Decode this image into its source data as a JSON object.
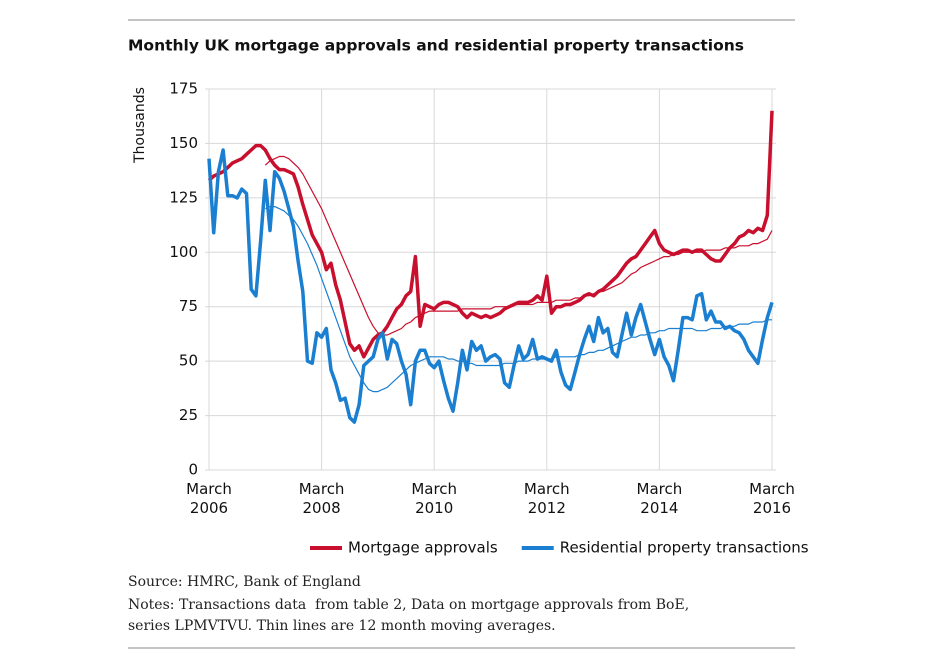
{
  "chart_data": {
    "type": "line",
    "title": "Monthly UK mortgage approvals and residential property transactions",
    "y_label": "Thousands",
    "source": "Source: HMRC, Bank of England",
    "notes": [
      "Notes: Transactions data  from table 2, Data on mortgage approvals from BoE,",
      "series LPMVTVU. Thin lines are 12 month moving averages."
    ],
    "x": [
      "2006-03",
      "2006-04",
      "2006-05",
      "2006-06",
      "2006-07",
      "2006-08",
      "2006-09",
      "2006-10",
      "2006-11",
      "2006-12",
      "2007-01",
      "2007-02",
      "2007-03",
      "2007-04",
      "2007-05",
      "2007-06",
      "2007-07",
      "2007-08",
      "2007-09",
      "2007-10",
      "2007-11",
      "2007-12",
      "2008-01",
      "2008-02",
      "2008-03",
      "2008-04",
      "2008-05",
      "2008-06",
      "2008-07",
      "2008-08",
      "2008-09",
      "2008-10",
      "2008-11",
      "2008-12",
      "2009-01",
      "2009-02",
      "2009-03",
      "2009-04",
      "2009-05",
      "2009-06",
      "2009-07",
      "2009-08",
      "2009-09",
      "2009-10",
      "2009-11",
      "2009-12",
      "2010-01",
      "2010-02",
      "2010-03",
      "2010-04",
      "2010-05",
      "2010-06",
      "2010-07",
      "2010-08",
      "2010-09",
      "2010-10",
      "2010-11",
      "2010-12",
      "2011-01",
      "2011-02",
      "2011-03",
      "2011-04",
      "2011-05",
      "2011-06",
      "2011-07",
      "2011-08",
      "2011-09",
      "2011-10",
      "2011-11",
      "2011-12",
      "2012-01",
      "2012-02",
      "2012-03",
      "2012-04",
      "2012-05",
      "2012-06",
      "2012-07",
      "2012-08",
      "2012-09",
      "2012-10",
      "2012-11",
      "2012-12",
      "2013-01",
      "2013-02",
      "2013-03",
      "2013-04",
      "2013-05",
      "2013-06",
      "2013-07",
      "2013-08",
      "2013-09",
      "2013-10",
      "2013-11",
      "2013-12",
      "2014-01",
      "2014-02",
      "2014-03",
      "2014-04",
      "2014-05",
      "2014-06",
      "2014-07",
      "2014-08",
      "2014-09",
      "2014-10",
      "2014-11",
      "2014-12",
      "2015-01",
      "2015-02",
      "2015-03",
      "2015-04",
      "2015-05",
      "2015-06",
      "2015-07",
      "2015-08",
      "2015-09",
      "2015-10",
      "2015-11",
      "2015-12",
      "2016-01",
      "2016-02",
      "2016-03"
    ],
    "series": [
      {
        "name": "Mortgage approvals",
        "color": "#c8102e",
        "values": [
          133,
          135,
          136,
          137,
          139,
          141,
          142,
          143,
          145,
          147,
          149,
          149,
          147,
          143,
          140,
          138,
          138,
          137,
          136,
          130,
          122,
          115,
          108,
          104,
          100,
          92,
          95,
          85,
          78,
          68,
          58,
          55,
          57,
          52,
          56,
          60,
          62,
          63,
          66,
          70,
          74,
          76,
          80,
          82,
          98,
          66,
          76,
          75,
          74,
          76,
          77,
          77,
          76,
          75,
          72,
          70,
          72,
          71,
          70,
          71,
          70,
          71,
          72,
          74,
          75,
          76,
          77,
          77,
          77,
          78,
          80,
          78,
          89,
          72,
          75,
          75,
          76,
          76,
          77,
          78,
          80,
          81,
          80,
          82,
          83,
          85,
          87,
          89,
          92,
          95,
          97,
          98,
          101,
          104,
          107,
          110,
          104,
          101,
          100,
          99,
          100,
          101,
          101,
          100,
          101,
          101,
          99,
          97,
          96,
          96,
          99,
          102,
          104,
          107,
          108,
          110,
          109,
          111,
          110,
          117,
          165
        ]
      },
      {
        "name": "Residential property transactions",
        "color": "#1a7fd0",
        "values": [
          143,
          109,
          137,
          147,
          126,
          126,
          125,
          129,
          127,
          83,
          80,
          105,
          133,
          110,
          137,
          134,
          128,
          120,
          112,
          96,
          82,
          50,
          49,
          63,
          61,
          65,
          46,
          40,
          32,
          33,
          24,
          22,
          30,
          48,
          50,
          52,
          60,
          63,
          51,
          60,
          58,
          50,
          44,
          30,
          50,
          55,
          55,
          49,
          47,
          50,
          41,
          33,
          27,
          40,
          55,
          46,
          59,
          55,
          57,
          50,
          52,
          53,
          51,
          40,
          38,
          48,
          57,
          51,
          53,
          60,
          51,
          52,
          51,
          50,
          55,
          45,
          39,
          37,
          45,
          53,
          60,
          66,
          59,
          70,
          63,
          65,
          54,
          52,
          62,
          72,
          62,
          70,
          76,
          68,
          60,
          53,
          60,
          52,
          48,
          41,
          55,
          70,
          70,
          69,
          80,
          81,
          69,
          73,
          68,
          68,
          65,
          66,
          64,
          63,
          60,
          55,
          52,
          49,
          60,
          70,
          77
        ]
      }
    ],
    "moving_averages": [
      {
        "color": "#c8102e",
        "values": [
          null,
          null,
          null,
          null,
          null,
          null,
          null,
          null,
          null,
          null,
          null,
          null,
          140,
          142,
          143,
          144,
          144,
          143,
          141,
          139,
          136,
          132,
          128,
          124,
          120,
          115,
          110,
          105,
          100,
          95,
          90,
          85,
          80,
          75,
          70,
          66,
          63,
          62,
          62,
          63,
          64,
          65,
          67,
          68,
          70,
          71,
          72,
          73,
          73,
          73,
          73,
          73,
          73,
          73,
          74,
          74,
          74,
          74,
          74,
          74,
          74,
          75,
          75,
          75,
          75,
          76,
          76,
          76,
          76,
          76,
          77,
          77,
          77,
          77,
          78,
          78,
          78,
          78,
          79,
          79,
          80,
          80,
          81,
          82,
          82,
          83,
          84,
          85,
          86,
          88,
          90,
          91,
          93,
          94,
          95,
          96,
          97,
          98,
          98,
          99,
          99,
          100,
          100,
          100,
          100,
          100,
          101,
          101,
          101,
          101,
          102,
          102,
          102,
          103,
          103,
          103,
          104,
          104,
          105,
          106,
          110
        ]
      },
      {
        "color": "#1a7fd0",
        "values": [
          null,
          null,
          null,
          null,
          null,
          null,
          null,
          null,
          null,
          null,
          null,
          null,
          120,
          121,
          121,
          120,
          119,
          117,
          115,
          112,
          108,
          104,
          99,
          94,
          88,
          82,
          76,
          70,
          64,
          58,
          52,
          48,
          44,
          40,
          37,
          36,
          36,
          37,
          38,
          40,
          42,
          44,
          46,
          48,
          49,
          50,
          51,
          52,
          52,
          52,
          52,
          51,
          51,
          50,
          50,
          49,
          49,
          48,
          48,
          48,
          48,
          48,
          48,
          49,
          49,
          49,
          50,
          50,
          50,
          51,
          51,
          51,
          51,
          51,
          52,
          52,
          52,
          52,
          52,
          53,
          53,
          54,
          54,
          55,
          55,
          56,
          57,
          58,
          59,
          60,
          61,
          61,
          62,
          62,
          63,
          63,
          64,
          64,
          65,
          65,
          65,
          65,
          65,
          65,
          64,
          64,
          64,
          65,
          65,
          65,
          66,
          66,
          66,
          67,
          67,
          67,
          68,
          68,
          68,
          69,
          69
        ]
      }
    ],
    "xticks": [
      {
        "value": "2006-03",
        "label": "March 2006"
      },
      {
        "value": "2008-03",
        "label": "March 2008"
      },
      {
        "value": "2010-03",
        "label": "March 2010"
      },
      {
        "value": "2012-03",
        "label": "March 2012"
      },
      {
        "value": "2014-03",
        "label": "March 2014"
      },
      {
        "value": "2016-03",
        "label": "March 2016"
      }
    ],
    "ylim": [
      0,
      175
    ],
    "yticks": [
      0,
      25,
      50,
      75,
      100,
      125,
      150,
      175
    ],
    "grid": true,
    "legend": "bottom"
  }
}
